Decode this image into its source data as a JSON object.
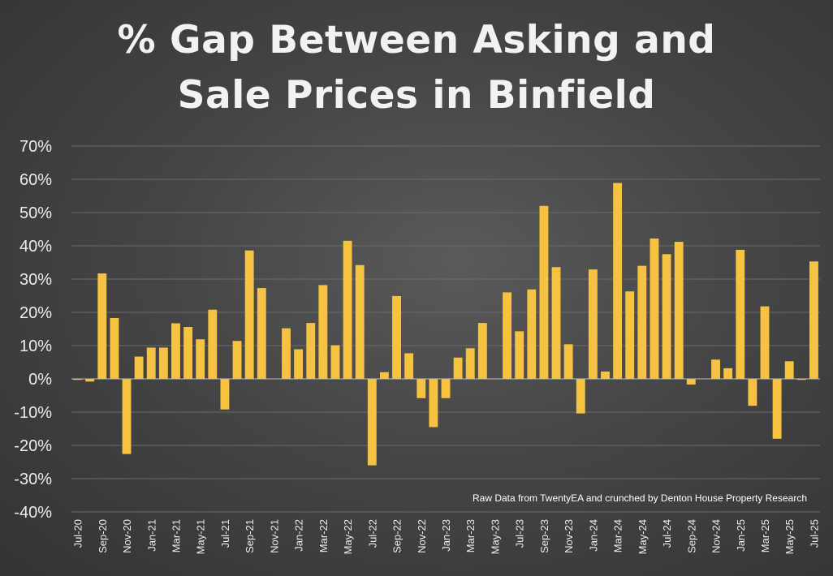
{
  "chart_data": {
    "type": "bar",
    "title_lines": [
      "% Gap Between Asking and",
      "Sale Prices in Binfield"
    ],
    "annotation": "Raw Data from TwentyEA and crunched by Denton House Property Research",
    "ylim": [
      -40,
      70
    ],
    "yticks": [
      -40,
      -30,
      -20,
      -10,
      0,
      10,
      20,
      30,
      40,
      50,
      60,
      70
    ],
    "ytick_labels": [
      "-40%",
      "-30%",
      "-20%",
      "-10%",
      "0%",
      "10%",
      "20%",
      "30%",
      "40%",
      "50%",
      "60%",
      "70%"
    ],
    "grid": true,
    "bar_color": "#F5C242",
    "categories": [
      "Jul-20",
      "Aug-20",
      "Sep-20",
      "Oct-20",
      "Nov-20",
      "Dec-20",
      "Jan-21",
      "Feb-21",
      "Mar-21",
      "Apr-21",
      "May-21",
      "Jun-21",
      "Jul-21",
      "Aug-21",
      "Sep-21",
      "Oct-21",
      "Nov-21",
      "Dec-21",
      "Jan-22",
      "Feb-22",
      "Mar-22",
      "Apr-22",
      "May-22",
      "Jun-22",
      "Jul-22",
      "Aug-22",
      "Sep-22",
      "Oct-22",
      "Nov-22",
      "Dec-22",
      "Jan-23",
      "Feb-23",
      "Mar-23",
      "Apr-23",
      "May-23",
      "Jun-23",
      "Jul-23",
      "Aug-23",
      "Sep-23",
      "Oct-23",
      "Nov-23",
      "Dec-23",
      "Jan-24",
      "Feb-24",
      "Mar-24",
      "Apr-24",
      "May-24",
      "Jun-24",
      "Jul-24",
      "Aug-24",
      "Sep-24",
      "Oct-24",
      "Nov-24",
      "Dec-24",
      "Jan-25",
      "Feb-25",
      "Mar-25",
      "Apr-25",
      "May-25",
      "Jun-25",
      "Jul-25"
    ],
    "tick_labels": [
      "Jul-20",
      "Sep-20",
      "Nov-20",
      "Jan-21",
      "Mar-21",
      "May-21",
      "Jul-21",
      "Sep-21",
      "Nov-21",
      "Jan-22",
      "Mar-22",
      "May-22",
      "Jul-22",
      "Sep-22",
      "Nov-22",
      "Jan-23",
      "Mar-23",
      "May-23",
      "Jul-23",
      "Sep-23",
      "Nov-23",
      "Jan-24",
      "Mar-24",
      "May-24",
      "Jul-24",
      "Sep-24",
      "Nov-24",
      "Jan-25",
      "Mar-25",
      "May-25",
      "Jul-25"
    ],
    "values": [
      -0.3,
      -0.8,
      31.7,
      18.3,
      -22.6,
      6.7,
      9.4,
      9.4,
      16.7,
      15.6,
      11.9,
      20.8,
      -9.2,
      11.4,
      38.6,
      27.3,
      0,
      15.2,
      8.9,
      16.8,
      28.2,
      10.1,
      41.5,
      34.2,
      -26.0,
      2.0,
      24.9,
      7.7,
      -5.8,
      -14.5,
      -5.8,
      6.4,
      9.2,
      16.8,
      0,
      26.0,
      14.3,
      26.9,
      52.0,
      33.6,
      10.4,
      -10.4,
      32.9,
      2.2,
      58.9,
      26.3,
      34.0,
      42.2,
      37.5,
      41.2,
      -1.7,
      0,
      5.8,
      3.2,
      38.8,
      -8.1,
      21.8,
      -18.0,
      5.3,
      -0.3,
      35.3
    ]
  }
}
